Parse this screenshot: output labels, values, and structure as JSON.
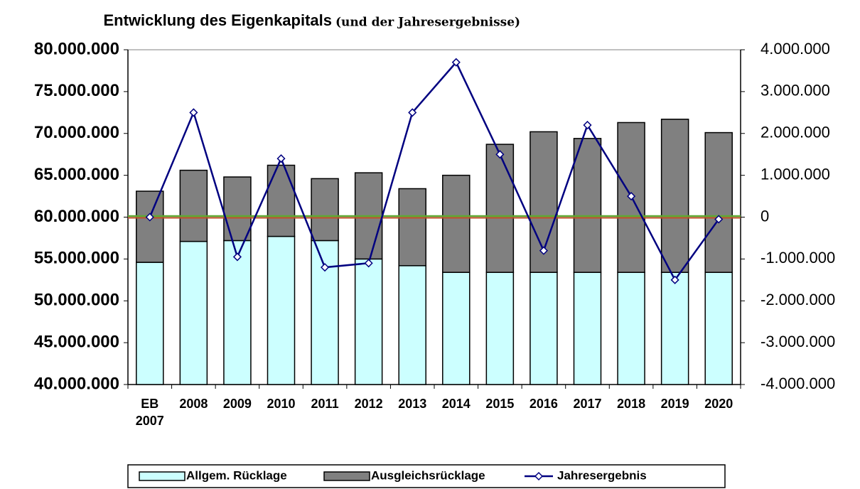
{
  "chart_data": {
    "type": "bar",
    "title": "Entwicklung des Eigenkapitals",
    "subtitle": "(und der Jahresergebnisse)",
    "stacked": true,
    "categories": [
      "EB 2007",
      "2008",
      "2009",
      "2010",
      "2011",
      "2012",
      "2013",
      "2014",
      "2015",
      "2016",
      "2017",
      "2018",
      "2019",
      "2020"
    ],
    "series": [
      {
        "name": "Allgem. Rücklage",
        "color": "#ccffff",
        "values": [
          54600000,
          57100000,
          57200000,
          57700000,
          57200000,
          55000000,
          54200000,
          53400000,
          53400000,
          53400000,
          53400000,
          53400000,
          53400000,
          53400000
        ]
      },
      {
        "name": "Ausgleichsrücklage",
        "color": "#808080",
        "values": [
          8500000,
          8500000,
          7600000,
          8500000,
          7400000,
          10300000,
          9200000,
          11600000,
          15300000,
          16800000,
          16000000,
          17900000,
          18300000,
          16700000
        ]
      },
      {
        "name": "Jahresergebnis",
        "type": "line",
        "axis": "y2",
        "color": "#000080",
        "values": [
          0,
          2500000,
          -950000,
          1400000,
          -1200000,
          -1100000,
          2500000,
          3700000,
          1500000,
          -800000,
          2200000,
          500000,
          -1500000,
          -50000
        ]
      }
    ],
    "ylim": [
      40000000,
      80000000
    ],
    "yticks": [
      {
        "value": 40000000,
        "label": "40.000.000"
      },
      {
        "value": 45000000,
        "label": "45.000.000"
      },
      {
        "value": 50000000,
        "label": "50.000.000"
      },
      {
        "value": 55000000,
        "label": "55.000.000"
      },
      {
        "value": 60000000,
        "label": "60.000.000"
      },
      {
        "value": 65000000,
        "label": "65.000.000"
      },
      {
        "value": 70000000,
        "label": "70.000.000"
      },
      {
        "value": 75000000,
        "label": "75.000.000"
      },
      {
        "value": 80000000,
        "label": "80.000.000"
      }
    ],
    "y2lim": [
      -4000000,
      4000000
    ],
    "y2ticks": [
      {
        "value": -4000000,
        "label": "-4.000.000"
      },
      {
        "value": -3000000,
        "label": "-3.000.000"
      },
      {
        "value": -2000000,
        "label": "-2.000.000"
      },
      {
        "value": -1000000,
        "label": "-1.000.000"
      },
      0,
      {
        "value": 1000000,
        "label": "1.000.000"
      },
      {
        "value": 2000000,
        "label": "2.000.000"
      },
      {
        "value": 3000000,
        "label": "3.000.000"
      },
      {
        "value": 4000000,
        "label": "4.000.000"
      }
    ],
    "legend": "bottom"
  }
}
